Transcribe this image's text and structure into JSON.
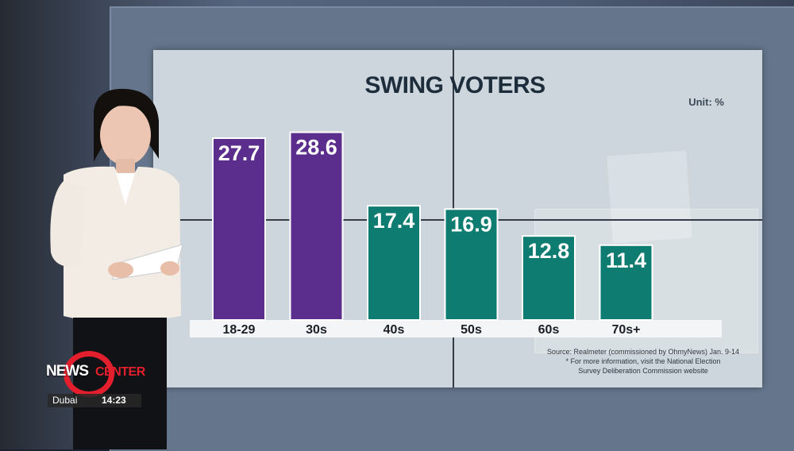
{
  "chart_data": {
    "type": "bar",
    "title": "SWING VOTERS",
    "unit": "Unit: %",
    "categories": [
      "18-29",
      "30s",
      "40s",
      "50s",
      "60s",
      "70s+"
    ],
    "values": [
      27.7,
      28.6,
      17.4,
      16.9,
      12.8,
      11.4
    ],
    "value_labels": [
      "27.7",
      "28.6",
      "17.4",
      "16.9",
      "12.8",
      "11.4"
    ],
    "bar_colors": [
      "#5b2d8c",
      "#5b2d8c",
      "#0e7c70",
      "#0e7c70",
      "#0e7c70",
      "#0e7c70"
    ],
    "ylim": [
      0,
      30
    ],
    "grid": false,
    "source": [
      "Source: Realmeter (commissioned by OhmyNews) Jan. 9-14",
      "* For more information, visit the National Election",
      "Survey Deliberation Commission website"
    ]
  },
  "broadcast": {
    "logo_news": "NEWS",
    "logo_center": "CENTER",
    "city": "Dubai",
    "time": "14:23"
  }
}
